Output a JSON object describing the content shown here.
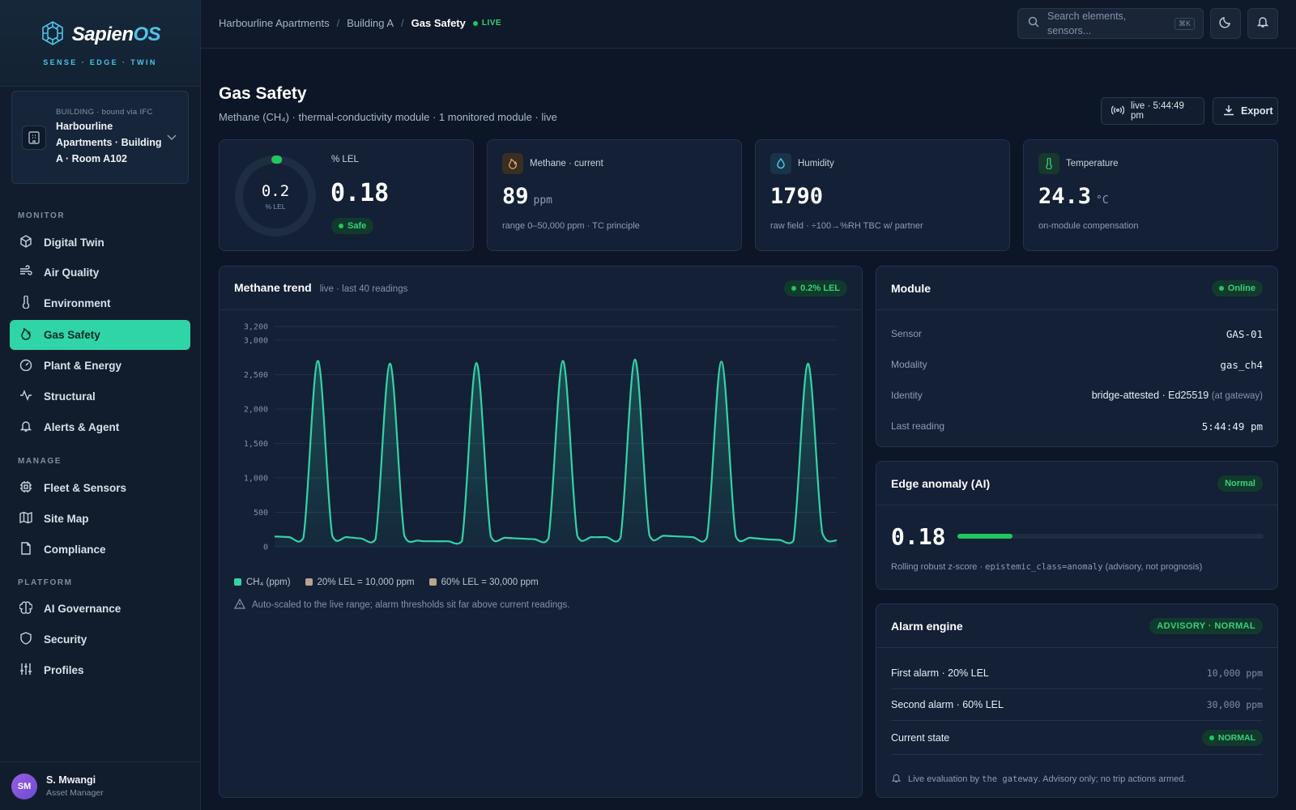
{
  "brand": {
    "name_a": "Sapien",
    "name_b": "OS",
    "tagline": "SENSE · EDGE · TWIN"
  },
  "building": {
    "bound": "BUILDING · bound via IFC",
    "name": "Harbourline Apartments · Building A · Room A102"
  },
  "nav": {
    "monitor_label": "MONITOR",
    "manage_label": "MANAGE",
    "platform_label": "PLATFORM",
    "items": [
      {
        "label": "Digital Twin",
        "icon": "cube-icon"
      },
      {
        "label": "Air Quality",
        "icon": "wind-icon"
      },
      {
        "label": "Environment",
        "icon": "thermometer-icon"
      },
      {
        "label": "Gas Safety",
        "icon": "flame-icon"
      },
      {
        "label": "Plant & Energy",
        "icon": "gauge-icon"
      },
      {
        "label": "Structural",
        "icon": "activity-icon"
      },
      {
        "label": "Alerts & Agent",
        "icon": "bell-icon"
      },
      {
        "label": "Fleet & Sensors",
        "icon": "chip-icon"
      },
      {
        "label": "Site Map",
        "icon": "map-icon"
      },
      {
        "label": "Compliance",
        "icon": "file-icon"
      },
      {
        "label": "AI Governance",
        "icon": "brain-icon"
      },
      {
        "label": "Security",
        "icon": "shield-icon"
      },
      {
        "label": "Profiles",
        "icon": "sliders-icon"
      }
    ]
  },
  "user": {
    "initials": "SM",
    "name": "S. Mwangi",
    "role": "Asset Manager"
  },
  "topbar": {
    "crumb1": "Harbourline Apartments",
    "sep": "/",
    "crumb2": "Building A",
    "crumb3": "Gas Safety",
    "live": "LIVE",
    "search_placeholder": "Search elements, sensors...",
    "shortcut": "⌘K"
  },
  "header": {
    "title": "Gas Safety",
    "subtitle": "Methane (CH₄) · thermal-conductivity module · 1 monitored module · live",
    "live_button": "live · 5:44:49 pm",
    "export_button": "Export"
  },
  "stats": {
    "lel": {
      "ring_value": "0.2",
      "ring_unit": "% LEL",
      "label": "% LEL",
      "value": "0.18",
      "status": "Safe",
      "fraction": 0.002
    },
    "methane": {
      "label": "Methane · current",
      "value": "89",
      "unit": "ppm",
      "foot": "range 0–50,000 ppm · TC principle"
    },
    "humidity": {
      "label": "Humidity",
      "value": "1790",
      "foot": "raw field · ÷100→%RH TBC w/ partner"
    },
    "temperature": {
      "label": "Temperature",
      "value": "24.3",
      "unit": "°C",
      "foot": "on-module compensation"
    }
  },
  "trend": {
    "title": "Methane trend",
    "sub": "live · last 40 readings",
    "badge": "0.2% LEL",
    "legend": [
      "CH₄ (ppm)",
      "20% LEL = 10,000 ppm",
      "60% LEL = 30,000 ppm"
    ],
    "note": "Auto-scaled to the live range; alarm thresholds sit far above current readings.",
    "colors": {
      "line": "#34d3a6",
      "lel20": "#b8a48f",
      "lel60": "#b8a48f"
    }
  },
  "chart_data": {
    "type": "line",
    "title": "Methane trend",
    "ylim": [
      0,
      3200
    ],
    "yticks": [
      "3,200",
      "3,000",
      "2,500",
      "2,000",
      "1,500",
      "1,000",
      "500",
      "0"
    ],
    "ytick_values": [
      3200,
      3000,
      2500,
      2000,
      1500,
      1000,
      500,
      0
    ],
    "series": [
      {
        "name": "CH₄ (ppm)",
        "values": [
          150,
          140,
          130,
          2700,
          160,
          140,
          120,
          110,
          2660,
          160,
          90,
          80,
          80,
          80,
          2670,
          150,
          130,
          120,
          110,
          120,
          2700,
          160,
          140,
          140,
          130,
          2720,
          170,
          160,
          150,
          140,
          130,
          2690,
          150,
          130,
          110,
          100,
          90,
          2660,
          200,
          90
        ]
      }
    ]
  },
  "module": {
    "title": "Module",
    "status": "Online",
    "rows": [
      {
        "k": "Sensor",
        "v": "GAS-01"
      },
      {
        "k": "Modality",
        "v": "gas_ch4"
      },
      {
        "k": "Identity",
        "v": "bridge-attested · Ed25519",
        "v2": "(at gateway)"
      },
      {
        "k": "Last reading",
        "v": "5:44:49 pm"
      }
    ]
  },
  "anomaly": {
    "title": "Edge anomaly (AI)",
    "status": "Normal",
    "value": "0.18",
    "fraction": 0.18,
    "foot_a": "Rolling robust z-score · ",
    "foot_code": "epistemic_class=anomaly",
    "foot_b": " (advisory, not prognosis)"
  },
  "alarm": {
    "title": "Alarm engine",
    "status": "ADVISORY · NORMAL",
    "rows": [
      {
        "k": "First alarm · 20% LEL",
        "v": "10,000 ppm"
      },
      {
        "k": "Second alarm · 60% LEL",
        "v": "30,000 ppm"
      },
      {
        "k": "Current state",
        "v": "NORMAL"
      }
    ],
    "foot_a": "Live evaluation by ",
    "foot_code": "the gateway",
    "foot_b": ". Advisory only; no trip actions armed."
  }
}
